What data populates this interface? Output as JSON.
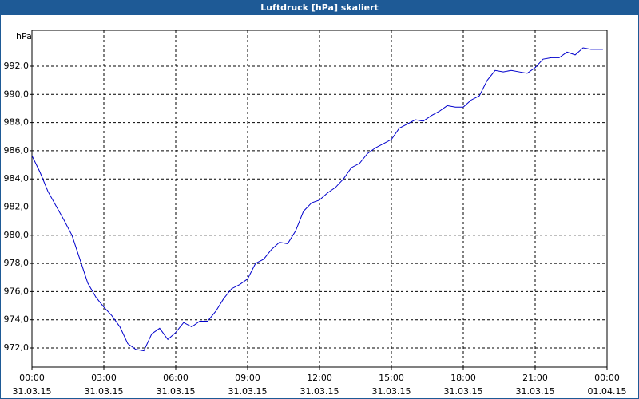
{
  "chart_data": {
    "type": "line",
    "title": "Luftdruck [hPa] skaliert",
    "y_unit": "hPa",
    "x": [
      0,
      0.33,
      0.67,
      1,
      1.33,
      1.67,
      2,
      2.33,
      2.67,
      3,
      3.33,
      3.67,
      4,
      4.33,
      4.67,
      5,
      5.33,
      5.67,
      6,
      6.33,
      6.67,
      7,
      7.33,
      7.67,
      8,
      8.33,
      8.67,
      9,
      9.33,
      9.67,
      10,
      10.33,
      10.67,
      11,
      11.33,
      11.67,
      12,
      12.33,
      12.67,
      13,
      13.33,
      13.67,
      14,
      14.33,
      14.67,
      15,
      15.33,
      15.67,
      16,
      16.33,
      16.67,
      17,
      17.33,
      17.67,
      18,
      18.33,
      18.67,
      19,
      19.33,
      19.67,
      20,
      20.33,
      20.67,
      21,
      21.33,
      21.67,
      22,
      22.33,
      22.67,
      23,
      23.33,
      23.67,
      23.83
    ],
    "series": [
      {
        "name": "Luftdruck",
        "color": "#0000cc",
        "values": [
          985.65,
          984.5,
          983.1,
          982.1,
          981.1,
          980.0,
          978.3,
          976.6,
          975.6,
          974.9,
          974.3,
          973.5,
          972.3,
          971.9,
          971.8,
          973.0,
          973.4,
          972.6,
          973.1,
          973.8,
          973.5,
          973.9,
          973.9,
          974.6,
          975.5,
          976.2,
          976.5,
          976.9,
          978.0,
          978.3,
          979.0,
          979.5,
          979.4,
          980.3,
          981.7,
          982.3,
          982.5,
          983.0,
          983.4,
          984.0,
          984.8,
          985.1,
          985.8,
          986.2,
          986.5,
          986.8,
          987.6,
          987.9,
          988.2,
          988.1,
          988.5,
          988.8,
          989.2,
          989.1,
          989.1,
          989.6,
          989.9,
          991.0,
          991.7,
          991.6,
          991.7,
          991.6,
          991.5,
          991.9,
          992.5,
          992.6,
          992.6,
          993.0,
          992.8,
          993.3,
          993.2,
          993.2,
          993.2
        ]
      }
    ],
    "xlim": [
      0,
      24
    ],
    "xticks": [
      {
        "value": 0,
        "label": "00:00",
        "date": "31.03.15"
      },
      {
        "value": 3,
        "label": "03:00",
        "date": "31.03.15"
      },
      {
        "value": 6,
        "label": "06:00",
        "date": "31.03.15"
      },
      {
        "value": 9,
        "label": "09:00",
        "date": "31.03.15"
      },
      {
        "value": 12,
        "label": "12:00",
        "date": "31.03.15"
      },
      {
        "value": 15,
        "label": "15:00",
        "date": "31.03.15"
      },
      {
        "value": 18,
        "label": "18:00",
        "date": "31.03.15"
      },
      {
        "value": 21,
        "label": "21:00",
        "date": "31.03.15"
      },
      {
        "value": 24,
        "label": "00:00",
        "date": "01.04.15"
      }
    ],
    "ylim": [
      970.64,
      994.55
    ],
    "yticks": [
      {
        "value": 972,
        "label": "972,0"
      },
      {
        "value": 974,
        "label": "974,0"
      },
      {
        "value": 976,
        "label": "976,0"
      },
      {
        "value": 978,
        "label": "978,0"
      },
      {
        "value": 980,
        "label": "980,0"
      },
      {
        "value": 982,
        "label": "982,0"
      },
      {
        "value": 984,
        "label": "984,0"
      },
      {
        "value": 986,
        "label": "986,0"
      },
      {
        "value": 988,
        "label": "988,0"
      },
      {
        "value": 990,
        "label": "990,0"
      },
      {
        "value": 992,
        "label": "992,0"
      }
    ],
    "grid": true
  }
}
